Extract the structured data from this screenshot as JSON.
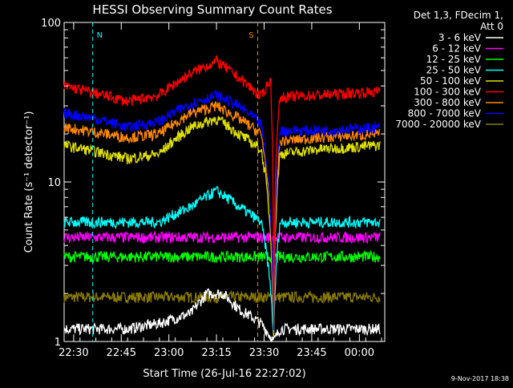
{
  "chart_data": {
    "type": "line",
    "title": "HESSI Observing Summary Count Rates",
    "xlabel": "Start Time (26-Jul-16 22:27:02)",
    "ylabel": "Count Rate (s⁻¹ detector⁻¹)",
    "xlim": [
      "22:27",
      "00:08"
    ],
    "ylim": [
      1,
      100
    ],
    "y_scale": "log",
    "x_ticks": [
      "22:30",
      "22:45",
      "23:00",
      "23:15",
      "23:30",
      "23:45",
      "00:00"
    ],
    "x_tick_minutes": [
      3,
      18,
      33,
      48,
      63,
      78,
      93
    ],
    "y_ticks": [
      "1",
      "10",
      "100"
    ],
    "legend_position": "top-right",
    "legend_header": [
      "Det 1,3, FDecim 1,",
      "Att 0"
    ],
    "series": [
      {
        "name": "3 - 6 keV",
        "color": "#ffffff",
        "x_min": [
          0,
          20,
          30,
          40,
          45,
          50,
          55,
          62,
          66,
          68,
          75,
          85,
          100
        ],
        "values": [
          1.2,
          1.2,
          1.3,
          1.5,
          2.0,
          2.0,
          1.6,
          1.3,
          1.0,
          1.2,
          1.2,
          1.2,
          1.2
        ]
      },
      {
        "name": "6 - 12 keV",
        "color": "#ff00ff",
        "x_min": [
          0,
          100
        ],
        "values": [
          4.5,
          4.5
        ]
      },
      {
        "name": "12 - 25 keV",
        "color": "#00ff00",
        "x_min": [
          0,
          100
        ],
        "values": [
          3.4,
          3.4
        ]
      },
      {
        "name": "25 - 50 keV",
        "color": "#00ffff",
        "x_min": [
          0,
          30,
          40,
          48,
          55,
          62,
          66,
          68,
          100
        ],
        "values": [
          5.6,
          5.6,
          7.0,
          8.8,
          7.0,
          5.6,
          1.0,
          5.6,
          5.6
        ]
      },
      {
        "name": "50 - 100 keV",
        "color": "#e0e000",
        "x_min": [
          0,
          20,
          30,
          40,
          48,
          55,
          62,
          66,
          68,
          80,
          100
        ],
        "values": [
          17,
          14,
          15,
          22,
          25,
          20,
          16,
          1.0,
          15,
          16,
          17
        ]
      },
      {
        "name": "100 - 300 keV",
        "color": "#ff0000",
        "x_min": [
          0,
          10,
          20,
          30,
          40,
          48,
          55,
          62,
          65,
          66,
          68,
          80,
          100
        ],
        "values": [
          40,
          36,
          32,
          35,
          48,
          57,
          45,
          34,
          44,
          1.0,
          34,
          35,
          37
        ]
      },
      {
        "name": "300 - 800 keV",
        "color": "#ff8800",
        "x_min": [
          0,
          20,
          30,
          40,
          48,
          55,
          62,
          66,
          68,
          80,
          100
        ],
        "values": [
          22,
          19,
          20,
          27,
          30,
          25,
          20,
          1.0,
          18,
          19,
          20
        ]
      },
      {
        "name": "800 - 7000 keV",
        "color": "#0000ff",
        "x_min": [
          0,
          10,
          20,
          30,
          40,
          48,
          55,
          62,
          66,
          68,
          80,
          100
        ],
        "values": [
          27,
          25,
          22,
          24,
          31,
          35,
          30,
          23,
          1.0,
          21,
          21,
          22
        ]
      },
      {
        "name": "7000 - 20000 keV",
        "color": "#8a7a00",
        "x_min": [
          0,
          100
        ],
        "values": [
          1.9,
          1.9
        ]
      }
    ],
    "annotations": [
      {
        "label": "N",
        "color": "#00ffff",
        "x_min": 9
      },
      {
        "label": "S",
        "color": "#ff8800",
        "x_min": 61
      }
    ],
    "footer_date": "9-Nov-2017 18:38"
  }
}
